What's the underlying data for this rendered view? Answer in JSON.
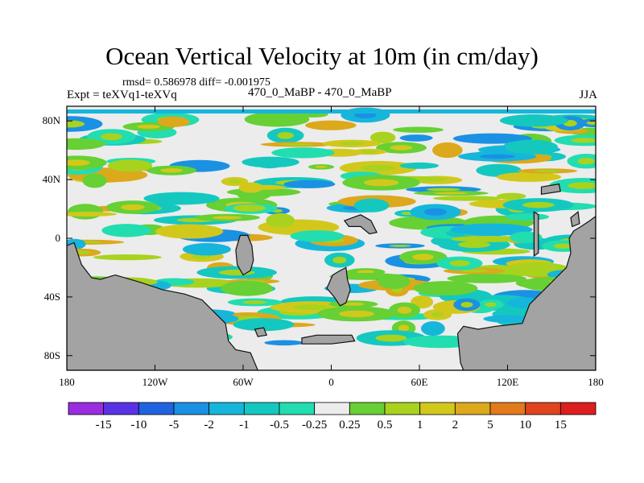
{
  "chart_data": {
    "type": "heatmap",
    "title": "Ocean Vertical Velocity at 10m (in cm/day)",
    "stats_line": "rmsd= 0.586978 diff= -0.001975",
    "experiment": "Expt = teXVq1-teXVq",
    "period": "470_0_MaBP - 470_0_MaBP",
    "season": "JJA",
    "x_ticks": [
      "180",
      "120W",
      "60W",
      "0",
      "60E",
      "120E",
      "180"
    ],
    "x_tick_values": [
      -180,
      -120,
      -60,
      0,
      60,
      120,
      180
    ],
    "y_ticks": [
      "80N",
      "40N",
      "0",
      "40S",
      "80S"
    ],
    "y_tick_values": [
      80,
      40,
      0,
      -40,
      -80
    ],
    "xlim": [
      -180,
      180
    ],
    "ylim": [
      -90,
      90
    ],
    "colorbar": {
      "levels": [
        "-15",
        "-10",
        "-5",
        "-2",
        "-1",
        "-0.5",
        "-0.25",
        "0.25",
        "0.5",
        "1",
        "2",
        "5",
        "10",
        "15"
      ],
      "colors": [
        "#9b2ce0",
        "#5a32e6",
        "#1f63e0",
        "#1a91e2",
        "#16b6db",
        "#14c8c0",
        "#22ddb0",
        "#ececec",
        "#66d034",
        "#a8d21e",
        "#d2c81c",
        "#dca81c",
        "#e27a1c",
        "#e0441c",
        "#dc1e1e"
      ]
    },
    "land_color": "#a3a3a3"
  }
}
